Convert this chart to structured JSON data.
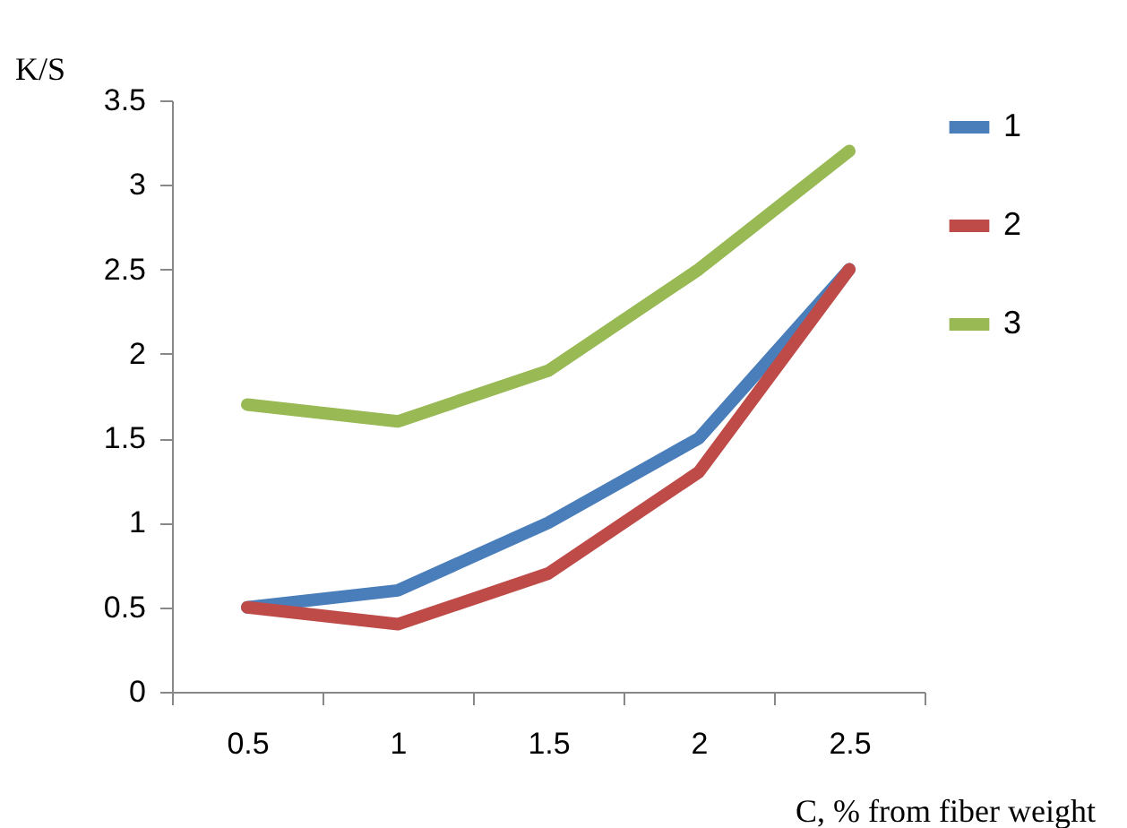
{
  "chart_data": {
    "type": "line",
    "xlabel": "C, % from fiber weight",
    "ylabel": "K/S",
    "categories": [
      "0.5",
      "1",
      "1.5",
      "2",
      "2.5"
    ],
    "series": [
      {
        "name": "1",
        "color": "#4a7ebb",
        "values": [
          0.5,
          0.6,
          1.0,
          1.5,
          2.5
        ]
      },
      {
        "name": "2",
        "color": "#be4b48",
        "values": [
          0.5,
          0.4,
          0.7,
          1.3,
          2.5
        ]
      },
      {
        "name": "3",
        "color": "#98b954",
        "values": [
          1.7,
          1.6,
          1.9,
          2.5,
          3.2
        ]
      }
    ],
    "ylim": [
      0,
      3.5
    ],
    "yticks": [
      0,
      0.5,
      1,
      1.5,
      2,
      2.5,
      3,
      3.5
    ],
    "grid": false,
    "legend": "right",
    "marker": "none",
    "line_style": "solid"
  }
}
